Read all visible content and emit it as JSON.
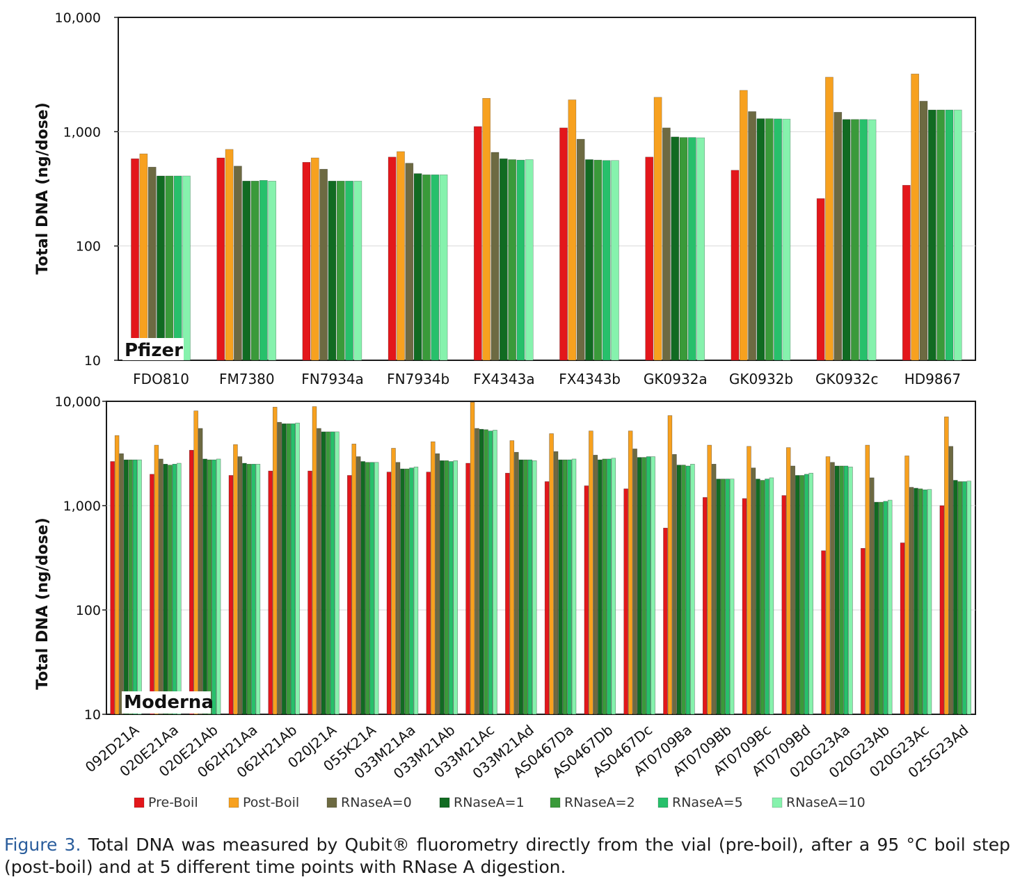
{
  "caption": {
    "label": "Figure 3.",
    "text": " Total DNA was measured by Qubit® fluorometry directly from the vial (pre-boil), after a 95 °C boil step (post-boil) and at 5 different time points with RNase A digestion."
  },
  "legend": {
    "entries": [
      {
        "name": "Pre-Boil",
        "color": "#e3171b"
      },
      {
        "name": "Post-Boil",
        "color": "#f7a11f"
      },
      {
        "name": "RNaseA=0",
        "color": "#6d6a42"
      },
      {
        "name": "RNaseA=1",
        "color": "#116b22"
      },
      {
        "name": "RNaseA=2",
        "color": "#3a9a3a"
      },
      {
        "name": "RNaseA=5",
        "color": "#27c06b"
      },
      {
        "name": "RNaseA=10",
        "color": "#86f2ad"
      }
    ]
  },
  "chart_data": [
    {
      "type": "bar",
      "panel_label": "Pfizer",
      "ylabel": "Total DNA (ng/dose)",
      "yscale": "log",
      "ylim": [
        10,
        10000
      ],
      "yticks": [
        "10",
        "100",
        "1,000",
        "10,000"
      ],
      "grid": true,
      "categories": [
        "FDO810",
        "FM7380",
        "FN7934a",
        "FN7934b",
        "FX4343a",
        "FX4343b",
        "GK0932a",
        "GK0932b",
        "GK0932c",
        "HD9867"
      ],
      "series": [
        {
          "name": "Pre-Boil",
          "values": [
            580,
            590,
            540,
            600,
            1110,
            1080,
            600,
            460,
            260,
            340
          ]
        },
        {
          "name": "Post-Boil",
          "values": [
            640,
            700,
            590,
            670,
            1960,
            1900,
            2000,
            2300,
            3000,
            3200
          ]
        },
        {
          "name": "RNaseA=0",
          "values": [
            490,
            500,
            470,
            530,
            660,
            860,
            1080,
            1500,
            1480,
            1850
          ]
        },
        {
          "name": "RNaseA=1",
          "values": [
            410,
            370,
            370,
            430,
            580,
            570,
            900,
            1300,
            1280,
            1550
          ]
        },
        {
          "name": "RNaseA=2",
          "values": [
            410,
            370,
            370,
            420,
            570,
            565,
            890,
            1300,
            1280,
            1550
          ]
        },
        {
          "name": "RNaseA=5",
          "values": [
            410,
            375,
            370,
            420,
            565,
            560,
            890,
            1295,
            1280,
            1550
          ]
        },
        {
          "name": "RNaseA=10",
          "values": [
            410,
            370,
            370,
            420,
            570,
            560,
            885,
            1290,
            1275,
            1550
          ]
        }
      ]
    },
    {
      "type": "bar",
      "panel_label": "Moderna",
      "ylabel": "Total DNA (ng/dose)",
      "yscale": "log",
      "ylim": [
        10,
        10000
      ],
      "yticks": [
        "10",
        "100",
        "1,000",
        "10,000"
      ],
      "grid": true,
      "categories": [
        "092D21A",
        "020E21Aa",
        "020E21Ab",
        "062H21Aa",
        "062H21Ab",
        "020J21A",
        "055K21A",
        "033M21Aa",
        "033M21Ab",
        "033M21Ac",
        "033M21Ad",
        "AS0467Da",
        "AS0467Db",
        "AS0467Dc",
        "AT0709Ba",
        "AT0709Bb",
        "AT0709Bc",
        "AT0709Bd",
        "020G23Aa",
        "020G23Ab",
        "020G23Ac",
        "025G23Ad"
      ],
      "series": [
        {
          "name": "Pre-Boil",
          "values": [
            2650,
            2000,
            3400,
            1950,
            2150,
            2150,
            1950,
            2100,
            2100,
            2550,
            2050,
            1700,
            1550,
            1450,
            610,
            1200,
            1170,
            1250,
            370,
            390,
            440,
            1000
          ]
        },
        {
          "name": "Post-Boil",
          "values": [
            4700,
            3800,
            8100,
            3850,
            8800,
            8900,
            3900,
            3550,
            4100,
            9800,
            4200,
            4900,
            5200,
            5200,
            7300,
            3800,
            3700,
            3600,
            2950,
            3800,
            3000,
            7100
          ]
        },
        {
          "name": "RNaseA=0",
          "values": [
            3150,
            2800,
            5500,
            2950,
            6300,
            5500,
            2950,
            2600,
            3150,
            5500,
            3250,
            3300,
            3050,
            3500,
            3100,
            2500,
            2300,
            2400,
            2600,
            1850,
            1500,
            3700
          ]
        },
        {
          "name": "RNaseA=1",
          "values": [
            2750,
            2500,
            2800,
            2550,
            6100,
            5100,
            2650,
            2250,
            2700,
            5400,
            2750,
            2750,
            2750,
            2900,
            2450,
            1800,
            1800,
            1950,
            2400,
            1080,
            1470,
            1750
          ]
        },
        {
          "name": "RNaseA=2",
          "values": [
            2750,
            2450,
            2750,
            2500,
            6100,
            5100,
            2600,
            2250,
            2700,
            5350,
            2750,
            2750,
            2800,
            2900,
            2450,
            1800,
            1750,
            1950,
            2400,
            1080,
            1450,
            1700
          ]
        },
        {
          "name": "RNaseA=5",
          "values": [
            2750,
            2500,
            2750,
            2500,
            6100,
            5100,
            2600,
            2300,
            2650,
            5200,
            2750,
            2750,
            2800,
            2950,
            2400,
            1800,
            1800,
            2000,
            2400,
            1100,
            1420,
            1700
          ]
        },
        {
          "name": "RNaseA=10",
          "values": [
            2750,
            2550,
            2800,
            2500,
            6200,
            5100,
            2600,
            2350,
            2700,
            5300,
            2700,
            2800,
            2850,
            2950,
            2500,
            1800,
            1850,
            2050,
            2350,
            1130,
            1430,
            1720
          ]
        }
      ]
    }
  ]
}
